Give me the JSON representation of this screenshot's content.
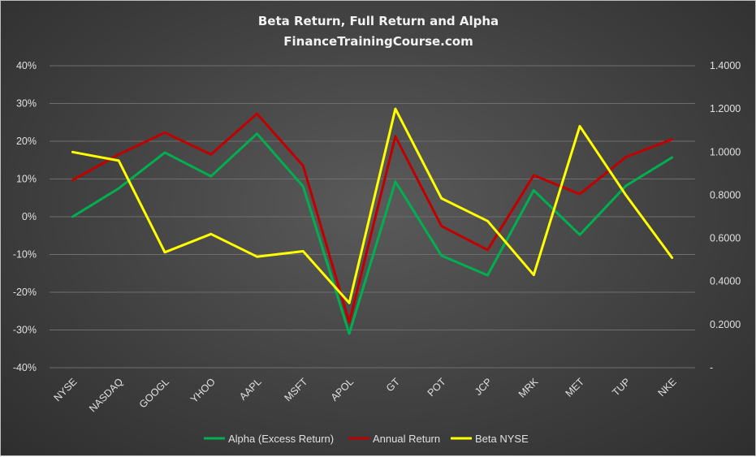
{
  "chart_data": {
    "type": "line",
    "title": "Beta Return, Full Return and Alpha",
    "subtitle": "FinanceTrainingCourse.com",
    "categories": [
      "NYSE",
      "NASDAQ",
      "GOOGL",
      "YHOO",
      "AAPL",
      "MSFT",
      "APOL",
      "GT",
      "POT",
      "JCP",
      "MRK",
      "MET",
      "TUP",
      "NKE"
    ],
    "y_left": {
      "ylim": [
        -0.4,
        0.4
      ],
      "ticks": [
        0.4,
        0.3,
        0.2,
        0.1,
        0,
        -0.1,
        -0.2,
        -0.3,
        -0.4
      ],
      "tick_labels": [
        "40%",
        "30%",
        "20%",
        "10%",
        "0%",
        "-10%",
        "-20%",
        "-30%",
        "-40%"
      ]
    },
    "y_right": {
      "ylim": [
        0,
        1.4
      ],
      "ticks": [
        1.4,
        1.2,
        1.0,
        0.8,
        0.6,
        0.4,
        0.2,
        0
      ],
      "tick_labels": [
        "1.4000",
        "1.2000",
        "1.0000",
        "0.8000",
        "0.6000",
        "0.4000",
        "0.2000",
        "-"
      ]
    },
    "grid": true,
    "legend_position": "bottom",
    "series": [
      {
        "name": "Alpha (Excess Return)",
        "axis": "left",
        "color": "#00b050",
        "values": [
          0.0,
          0.075,
          0.17,
          0.107,
          0.22,
          0.08,
          -0.31,
          0.093,
          -0.103,
          -0.155,
          0.07,
          -0.048,
          0.082,
          0.157
        ]
      },
      {
        "name": "Annual Return",
        "axis": "left",
        "color": "#c00000",
        "values": [
          0.097,
          0.165,
          0.223,
          0.165,
          0.273,
          0.135,
          -0.28,
          0.213,
          -0.025,
          -0.088,
          0.11,
          0.06,
          0.158,
          0.205
        ]
      },
      {
        "name": "Beta NYSE",
        "axis": "right",
        "color": "#ffff00",
        "values": [
          1.0,
          0.96,
          0.535,
          0.62,
          0.515,
          0.54,
          0.3,
          1.2,
          0.785,
          0.68,
          0.43,
          1.12,
          0.8,
          0.51
        ]
      }
    ]
  }
}
